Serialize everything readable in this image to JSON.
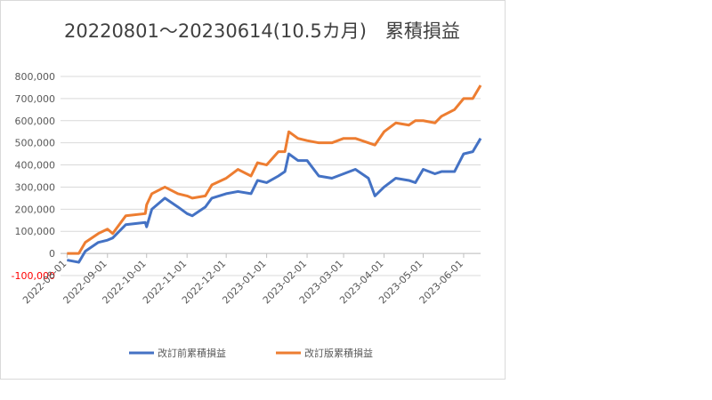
{
  "chart_data": {
    "type": "line",
    "title": "20220801～20230614(10.5カ月)　累積損益",
    "x": [
      "2022-08-01",
      "2022-08-10",
      "2022-08-15",
      "2022-08-25",
      "2022-09-01",
      "2022-09-05",
      "2022-09-15",
      "2022-09-30",
      "2022-10-01",
      "2022-10-05",
      "2022-10-15",
      "2022-10-25",
      "2022-11-01",
      "2022-11-05",
      "2022-11-15",
      "2022-11-20",
      "2022-12-01",
      "2022-12-10",
      "2022-12-20",
      "2022-12-25",
      "2023-01-01",
      "2023-01-10",
      "2023-01-15",
      "2023-01-18",
      "2023-01-25",
      "2023-02-01",
      "2023-02-10",
      "2023-02-20",
      "2023-03-01",
      "2023-03-10",
      "2023-03-20",
      "2023-03-25",
      "2023-04-01",
      "2023-04-10",
      "2023-04-20",
      "2023-04-25",
      "2023-05-01",
      "2023-05-10",
      "2023-05-15",
      "2023-05-25",
      "2023-06-01",
      "2023-06-08",
      "2023-06-14"
    ],
    "series": [
      {
        "name": "改訂前累積損益",
        "color": "#4472c4",
        "values": [
          -30000,
          -40000,
          10000,
          50000,
          60000,
          70000,
          130000,
          140000,
          120000,
          200000,
          250000,
          210000,
          180000,
          170000,
          210000,
          250000,
          270000,
          280000,
          270000,
          330000,
          320000,
          350000,
          370000,
          450000,
          420000,
          420000,
          350000,
          340000,
          360000,
          380000,
          340000,
          260000,
          300000,
          340000,
          330000,
          320000,
          380000,
          360000,
          370000,
          370000,
          450000,
          460000,
          520000
        ]
      },
      {
        "name": "改訂版累積損益",
        "color": "#ed7d31",
        "values": [
          0,
          0,
          50000,
          90000,
          110000,
          90000,
          170000,
          180000,
          220000,
          270000,
          300000,
          270000,
          260000,
          250000,
          260000,
          310000,
          340000,
          380000,
          350000,
          410000,
          400000,
          460000,
          460000,
          550000,
          520000,
          510000,
          500000,
          500000,
          520000,
          520000,
          500000,
          490000,
          550000,
          590000,
          580000,
          600000,
          600000,
          590000,
          620000,
          650000,
          700000,
          700000,
          760000
        ]
      }
    ],
    "xlim": [
      "2022-07-27",
      "2023-06-14"
    ],
    "xticks": [
      "2022-08-01",
      "2022-09-01",
      "2022-10-01",
      "2022-11-01",
      "2022-12-01",
      "2023-01-01",
      "2023-02-01",
      "2023-03-01",
      "2023-04-01",
      "2023-05-01",
      "2023-06-01"
    ],
    "ylim": [
      -100000,
      800000
    ],
    "yticks": [
      {
        "value": -100000,
        "label": "-100,000",
        "color": "#ff0000"
      },
      0,
      {
        "value": 100000,
        "label": "100,000"
      },
      {
        "value": 200000,
        "label": "200,000"
      },
      {
        "value": 300000,
        "label": "300,000"
      },
      {
        "value": 400000,
        "label": "400,000"
      },
      {
        "value": 500000,
        "label": "500,000"
      },
      {
        "value": 600000,
        "label": "600,000"
      },
      {
        "value": 700000,
        "label": "700,000"
      },
      {
        "value": 800000,
        "label": "800,000"
      }
    ],
    "grid": true,
    "legend": "bottom"
  }
}
